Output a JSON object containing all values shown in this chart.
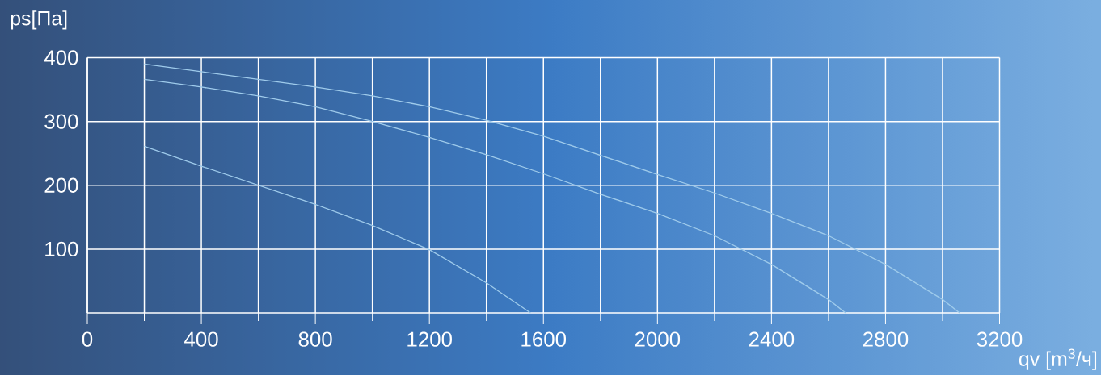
{
  "chart_data": {
    "type": "line",
    "xlabel": "qv [m$^{3}$/ч]",
    "ylabel": "ps[Па]",
    "xlim": [
      0,
      3200
    ],
    "ylim": [
      0,
      400
    ],
    "xticks": [
      0,
      400,
      800,
      1200,
      1600,
      2000,
      2400,
      2800,
      3200
    ],
    "yticks": [
      100,
      200,
      300,
      400
    ],
    "grid": true,
    "marker": "none",
    "line_style": "solid",
    "series": [
      {
        "color": "#9fcbeb",
        "x": [
          200,
          400,
          600,
          800,
          1000,
          1200,
          1400,
          1600,
          1800,
          2000,
          2200,
          2400,
          2600,
          2800,
          3000,
          3060
        ],
        "values": [
          390,
          378,
          366,
          354,
          340,
          323,
          302,
          277,
          247,
          217,
          188,
          156,
          121,
          76,
          21,
          0
        ]
      },
      {
        "color": "#9fcbeb",
        "x": [
          200,
          400,
          600,
          800,
          1000,
          1200,
          1400,
          1600,
          1800,
          2000,
          2200,
          2400,
          2600,
          2660
        ],
        "values": [
          366,
          354,
          340,
          323,
          300,
          275,
          248,
          218,
          186,
          156,
          121,
          76,
          21,
          0
        ]
      },
      {
        "color": "#9fcbeb",
        "x": [
          200,
          400,
          600,
          800,
          1000,
          1200,
          1400,
          1555
        ],
        "values": [
          261,
          230,
          200,
          170,
          137,
          99,
          47,
          0
        ]
      }
    ]
  }
}
